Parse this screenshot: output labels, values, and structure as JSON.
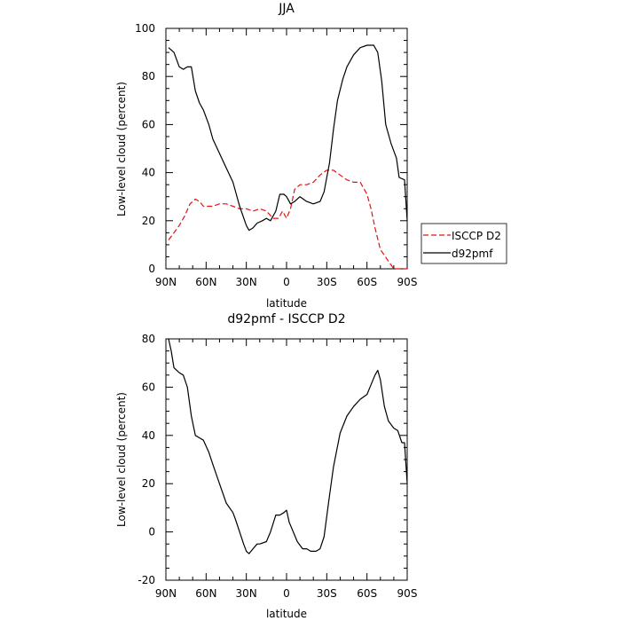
{
  "chart_data": [
    {
      "type": "line",
      "title": "JJA",
      "xlabel": "latitude",
      "ylabel": "Low-level cloud (percent)",
      "xlim": [
        90,
        -90
      ],
      "ylim": [
        0,
        100
      ],
      "x_ticks": [
        {
          "value": 90,
          "label": "90N"
        },
        {
          "value": 60,
          "label": "60N"
        },
        {
          "value": 30,
          "label": "30N"
        },
        {
          "value": 0,
          "label": "0"
        },
        {
          "value": -30,
          "label": "30S"
        },
        {
          "value": -60,
          "label": "60S"
        },
        {
          "value": -90,
          "label": "90S"
        }
      ],
      "y_ticks": [
        0,
        20,
        40,
        60,
        80,
        100
      ],
      "grid": false,
      "legend_position": "right",
      "series": [
        {
          "name": "ISCCP D2",
          "color": "#e8110f",
          "dash": "dashed",
          "x": [
            88,
            84,
            80,
            76,
            72,
            68,
            65,
            62,
            58,
            55,
            50,
            45,
            40,
            35,
            30,
            25,
            20,
            15,
            10,
            6,
            3,
            0,
            -3,
            -6,
            -10,
            -15,
            -20,
            -25,
            -30,
            -35,
            -40,
            -45,
            -50,
            -55,
            -60,
            -63,
            -66,
            -70,
            -75,
            -80,
            -84,
            -88,
            -90
          ],
          "y": [
            12,
            15,
            18,
            22,
            27,
            29,
            28,
            26,
            26,
            26,
            27,
            27,
            26,
            25,
            25,
            24,
            25,
            24,
            21,
            21,
            24,
            21,
            25,
            33,
            35,
            35,
            36,
            39,
            41,
            41,
            39,
            37,
            36,
            36,
            31,
            25,
            17,
            8,
            4,
            0,
            0,
            0,
            0
          ]
        },
        {
          "name": "d92pmf",
          "color": "#000000",
          "dash": "solid",
          "x": [
            88,
            84,
            80,
            77,
            74,
            71,
            68,
            65,
            62,
            58,
            55,
            50,
            45,
            40,
            35,
            30,
            28,
            25,
            22,
            18,
            15,
            12,
            8,
            5,
            2,
            0,
            -3,
            -6,
            -10,
            -15,
            -20,
            -25,
            -28,
            -32,
            -35,
            -38,
            -42,
            -45,
            -50,
            -55,
            -60,
            -65,
            -68,
            -71,
            -74,
            -78,
            -82,
            -84,
            -88,
            -90
          ],
          "y": [
            92,
            90,
            84,
            83,
            84,
            84,
            74,
            69,
            66,
            60,
            54,
            48,
            42,
            36,
            26,
            18,
            16,
            17,
            19,
            20,
            21,
            20,
            24,
            31,
            31,
            30,
            27,
            28,
            30,
            28,
            27,
            28,
            32,
            44,
            58,
            70,
            79,
            84,
            89,
            92,
            93,
            93,
            90,
            78,
            60,
            52,
            46,
            38,
            37,
            20
          ]
        }
      ]
    },
    {
      "type": "line",
      "title": "d92pmf - ISCCP D2",
      "xlabel": "latitude",
      "ylabel": "Low-level cloud (percent)",
      "xlim": [
        90,
        -90
      ],
      "ylim": [
        -20,
        80
      ],
      "x_ticks": [
        {
          "value": 90,
          "label": "90N"
        },
        {
          "value": 60,
          "label": "60N"
        },
        {
          "value": 30,
          "label": "30N"
        },
        {
          "value": 0,
          "label": "0"
        },
        {
          "value": -30,
          "label": "30S"
        },
        {
          "value": -60,
          "label": "60S"
        },
        {
          "value": -90,
          "label": "90S"
        }
      ],
      "y_ticks": [
        -20,
        0,
        20,
        40,
        60,
        80
      ],
      "grid": false,
      "series": [
        {
          "color": "#000000",
          "dash": "solid",
          "x": [
            88,
            86,
            84,
            80,
            77,
            74,
            71,
            68,
            65,
            62,
            58,
            55,
            50,
            45,
            40,
            38,
            35,
            32,
            30,
            28,
            25,
            22,
            20,
            15,
            12,
            8,
            5,
            2,
            0,
            -2,
            -5,
            -8,
            -12,
            -15,
            -18,
            -22,
            -25,
            -28,
            -32,
            -35,
            -40,
            -45,
            -50,
            -55,
            -60,
            -63,
            -66,
            -68,
            -70,
            -73,
            -76,
            -80,
            -83,
            -86,
            -88,
            -90
          ],
          "y": [
            80,
            75,
            68,
            66,
            65,
            60,
            48,
            40,
            39,
            38,
            33,
            28,
            20,
            12,
            8,
            5,
            0,
            -5,
            -8,
            -9,
            -7,
            -5,
            -5,
            -4,
            0,
            7,
            7,
            8,
            9,
            4,
            0,
            -4,
            -7,
            -7,
            -8,
            -8,
            -7,
            -2,
            15,
            27,
            41,
            48,
            52,
            55,
            57,
            61,
            65,
            67,
            63,
            52,
            46,
            43,
            42,
            37,
            37,
            20
          ]
        }
      ]
    }
  ]
}
